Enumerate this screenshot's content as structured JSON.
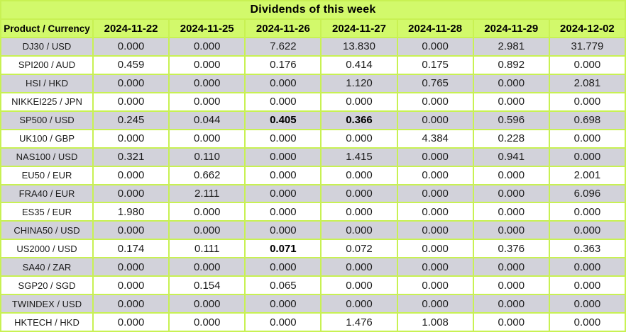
{
  "title": "Dividends of this week",
  "colors": {
    "header_bg": "#d2f96b",
    "border": "#c8f153",
    "row_stripe_bg": "#d2d2da",
    "row_bg": "#ffffff",
    "text": "#1b1b1b"
  },
  "chart_data": {
    "type": "table",
    "title": "Dividends of this week",
    "columns": [
      "Product / Currency",
      "2024-11-22",
      "2024-11-25",
      "2024-11-26",
      "2024-11-27",
      "2024-11-28",
      "2024-11-29",
      "2024-12-02"
    ],
    "rows": [
      {
        "product": "DJ30 / USD",
        "values": [
          "0.000",
          "0.000",
          "7.622",
          "13.830",
          "0.000",
          "2.981",
          "31.779"
        ],
        "bold": []
      },
      {
        "product": "SPI200 / AUD",
        "values": [
          "0.459",
          "0.000",
          "0.176",
          "0.414",
          "0.175",
          "0.892",
          "0.000"
        ],
        "bold": []
      },
      {
        "product": "HSI / HKD",
        "values": [
          "0.000",
          "0.000",
          "0.000",
          "1.120",
          "0.765",
          "0.000",
          "2.081"
        ],
        "bold": []
      },
      {
        "product": "NIKKEI225 / JPN",
        "values": [
          "0.000",
          "0.000",
          "0.000",
          "0.000",
          "0.000",
          "0.000",
          "0.000"
        ],
        "bold": []
      },
      {
        "product": "SP500 / USD",
        "values": [
          "0.245",
          "0.044",
          "0.405",
          "0.366",
          "0.000",
          "0.596",
          "0.698"
        ],
        "bold": [
          2,
          3
        ]
      },
      {
        "product": "UK100 / GBP",
        "values": [
          "0.000",
          "0.000",
          "0.000",
          "0.000",
          "4.384",
          "0.228",
          "0.000"
        ],
        "bold": []
      },
      {
        "product": "NAS100 / USD",
        "values": [
          "0.321",
          "0.110",
          "0.000",
          "1.415",
          "0.000",
          "0.941",
          "0.000"
        ],
        "bold": []
      },
      {
        "product": "EU50 / EUR",
        "values": [
          "0.000",
          "0.662",
          "0.000",
          "0.000",
          "0.000",
          "0.000",
          "2.001"
        ],
        "bold": []
      },
      {
        "product": "FRA40 / EUR",
        "values": [
          "0.000",
          "2.111",
          "0.000",
          "0.000",
          "0.000",
          "0.000",
          "6.096"
        ],
        "bold": []
      },
      {
        "product": "ES35 / EUR",
        "values": [
          "1.980",
          "0.000",
          "0.000",
          "0.000",
          "0.000",
          "0.000",
          "0.000"
        ],
        "bold": []
      },
      {
        "product": "CHINA50 / USD",
        "values": [
          "0.000",
          "0.000",
          "0.000",
          "0.000",
          "0.000",
          "0.000",
          "0.000"
        ],
        "bold": []
      },
      {
        "product": "US2000 / USD",
        "values": [
          "0.174",
          "0.111",
          "0.071",
          "0.072",
          "0.000",
          "0.376",
          "0.363"
        ],
        "bold": [
          2
        ]
      },
      {
        "product": "SA40 / ZAR",
        "values": [
          "0.000",
          "0.000",
          "0.000",
          "0.000",
          "0.000",
          "0.000",
          "0.000"
        ],
        "bold": []
      },
      {
        "product": "SGP20 / SGD",
        "values": [
          "0.000",
          "0.154",
          "0.065",
          "0.000",
          "0.000",
          "0.000",
          "0.000"
        ],
        "bold": []
      },
      {
        "product": "TWINDEX / USD",
        "values": [
          "0.000",
          "0.000",
          "0.000",
          "0.000",
          "0.000",
          "0.000",
          "0.000"
        ],
        "bold": []
      },
      {
        "product": "HKTECH / HKD",
        "values": [
          "0.000",
          "0.000",
          "0.000",
          "1.476",
          "1.008",
          "0.000",
          "0.000"
        ],
        "bold": []
      }
    ]
  }
}
